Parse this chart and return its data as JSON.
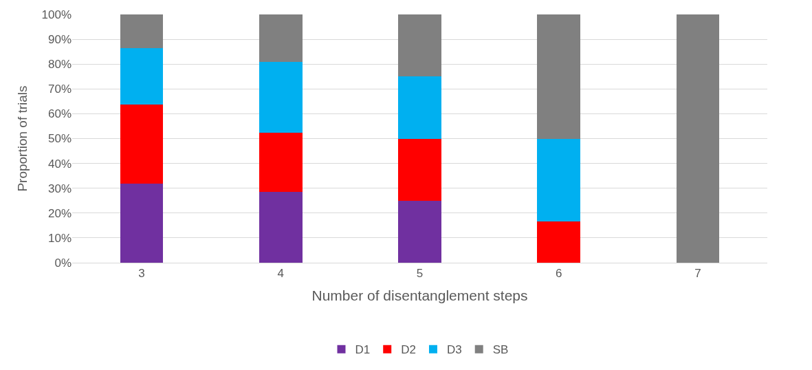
{
  "chart_data": {
    "type": "bar",
    "stacked": true,
    "xlabel": "Number of disentanglement steps",
    "ylabel": "Proportion of trials",
    "categories": [
      "3",
      "4",
      "5",
      "6",
      "7"
    ],
    "series": [
      {
        "name": "D1",
        "color": "#7030a0",
        "values": [
          31.8,
          28.6,
          25,
          0,
          0
        ]
      },
      {
        "name": "D2",
        "color": "#ff0000",
        "values": [
          31.8,
          23.8,
          25,
          16.7,
          0
        ]
      },
      {
        "name": "D3",
        "color": "#00b0f0",
        "values": [
          22.7,
          28.6,
          25,
          33.3,
          0
        ]
      },
      {
        "name": "SB",
        "color": "#808080",
        "values": [
          13.6,
          19.0,
          25,
          50,
          100
        ]
      }
    ],
    "ylim": [
      0,
      100
    ],
    "yticks": [
      {
        "value": 0,
        "label": "0%"
      },
      {
        "value": 10,
        "label": "10%"
      },
      {
        "value": 20,
        "label": "20%"
      },
      {
        "value": 30,
        "label": "30%"
      },
      {
        "value": 40,
        "label": "40%"
      },
      {
        "value": 50,
        "label": "50%"
      },
      {
        "value": 60,
        "label": "60%"
      },
      {
        "value": 70,
        "label": "70%"
      },
      {
        "value": 80,
        "label": "80%"
      },
      {
        "value": 90,
        "label": "90%"
      },
      {
        "value": 100,
        "label": "100%"
      }
    ],
    "grid": "y",
    "legend": "bottom"
  }
}
